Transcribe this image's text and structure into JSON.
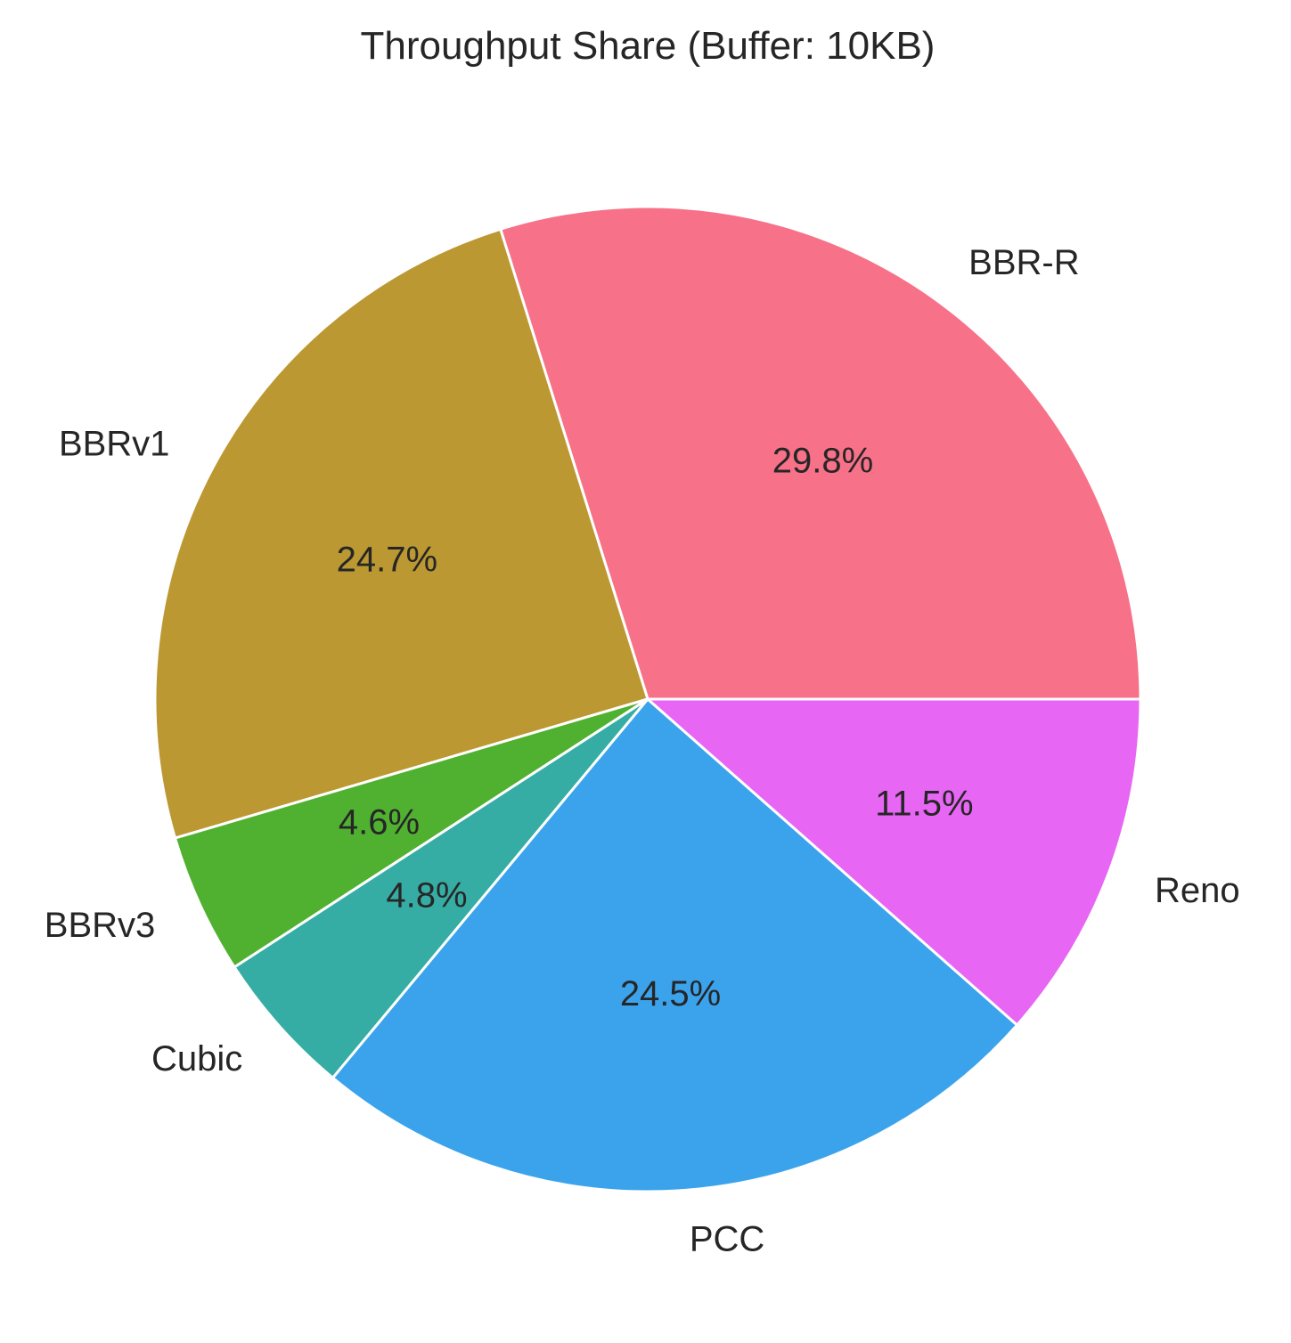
{
  "chart_data": {
    "type": "pie",
    "title": "Throughput Share (Buffer: 10KB)",
    "start_angle_deg": 0,
    "direction": "counterclockwise",
    "slices": [
      {
        "label": "BBR-R",
        "value": 29.8,
        "pct_text": "29.8%",
        "color": "#f77189"
      },
      {
        "label": "BBRv1",
        "value": 24.7,
        "pct_text": "24.7%",
        "color": "#bb9832"
      },
      {
        "label": "BBRv3",
        "value": 4.6,
        "pct_text": "4.6%",
        "color": "#50b131"
      },
      {
        "label": "Cubic",
        "value": 4.8,
        "pct_text": "4.8%",
        "color": "#36ada4"
      },
      {
        "label": "PCC",
        "value": 24.5,
        "pct_text": "24.5%",
        "color": "#3ba3ec"
      },
      {
        "label": "Reno",
        "value": 11.5,
        "pct_text": "11.5%",
        "color": "#e866f4"
      }
    ]
  }
}
